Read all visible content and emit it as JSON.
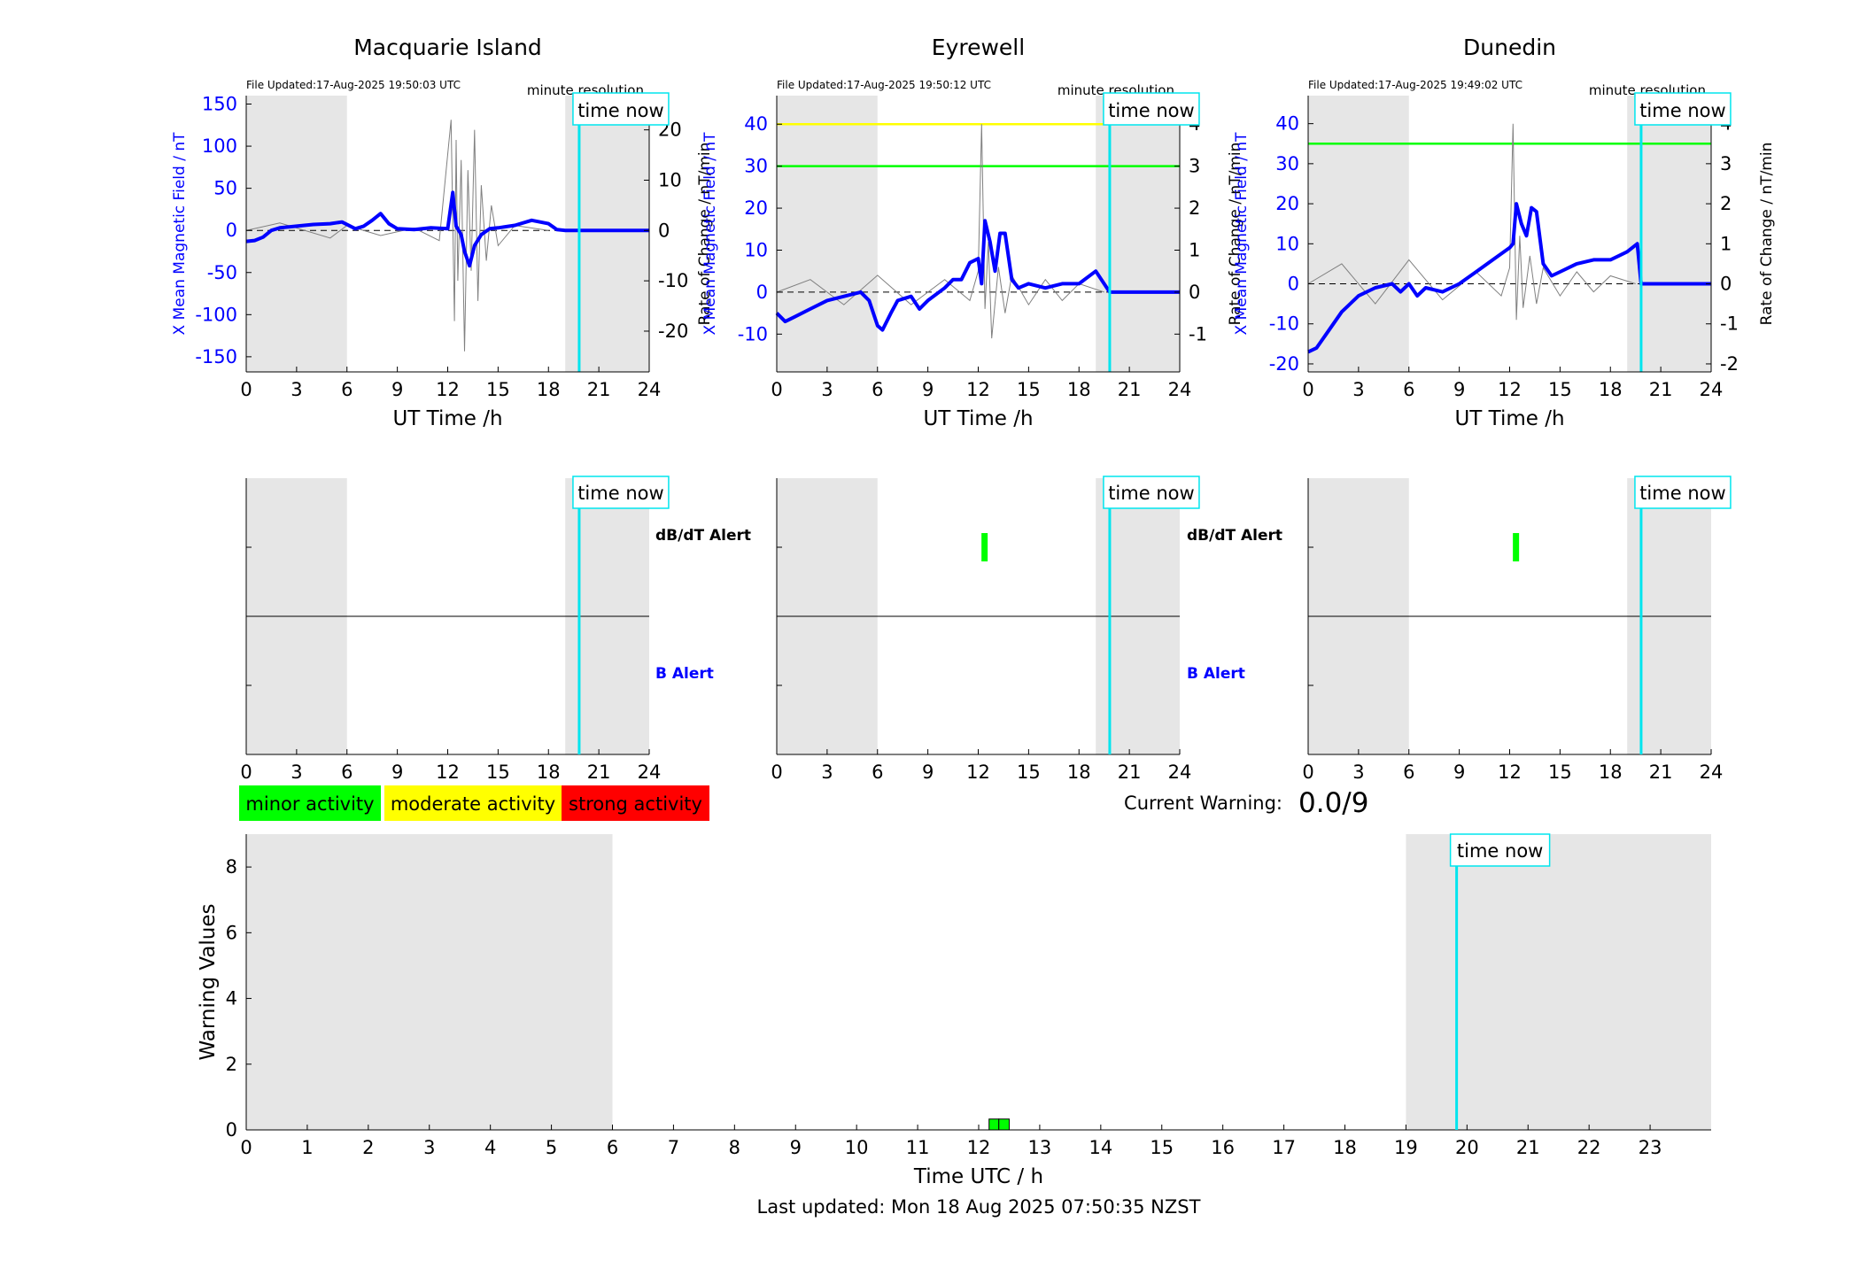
{
  "colors": {
    "background_axes": "#e6e6e6",
    "mean_field": "#0000ff",
    "rate_of_change": "#808080",
    "time_now": "#00e5ee",
    "minor": "#00ff00",
    "moderate": "#ffff00",
    "strong": "#ff0000"
  },
  "stations": [
    {
      "name": "Macquarie Island",
      "file_updated": "File Updated:17-Aug-2025 19:50:03 UTC",
      "resolution": "minute resolution",
      "time_now_label": "time now",
      "y_left_label": "X Mean Magnetic Field / nT",
      "y_right_label": "Rate of Change / nT/min",
      "x_label": "UT Time /h"
    },
    {
      "name": "Eyrewell",
      "file_updated": "File Updated:17-Aug-2025 19:50:12 UTC",
      "resolution": "minute resolution",
      "time_now_label": "time now",
      "y_left_label": "X Mean Magnetic Field / nT",
      "y_right_label": "Rate of Change / nT/min",
      "x_label": "UT Time /h"
    },
    {
      "name": "Dunedin",
      "file_updated": "File Updated:17-Aug-2025 19:49:02 UTC",
      "resolution": "minute resolution",
      "time_now_label": "time now",
      "y_left_label": "X Mean Magnetic Field / nT",
      "y_right_label": "Rate of Change / nT/min",
      "x_label": "UT Time /h"
    }
  ],
  "alerts": {
    "dbdt_label": "dB/dT Alert",
    "b_label": "B Alert",
    "time_now_label": "time now"
  },
  "legend": {
    "minor": "minor activity",
    "moderate": "moderate activity",
    "strong": "strong activity"
  },
  "current_warning": {
    "label": "Current Warning:",
    "value": "0.0/9"
  },
  "warning": {
    "y_label": "Warning Values",
    "x_label": "Time UTC / h",
    "time_now_label": "time now"
  },
  "footer": {
    "last_updated": "Last updated: Mon 18 Aug 2025 07:50:35 NZST"
  },
  "chart_data": [
    {
      "type": "line",
      "title": "Macquarie Island",
      "xlabel": "UT Time /h",
      "ylabel": "X Mean Magnetic Field / nT",
      "ylabel_right": "Rate of Change / nT/min",
      "xlim": [
        0,
        24
      ],
      "ylim": [
        -168,
        160
      ],
      "ylim_right": [
        -28.1,
        26.8
      ],
      "xticks": [
        0,
        3,
        6,
        9,
        12,
        15,
        18,
        21,
        24
      ],
      "yticks": [
        -150,
        -100,
        -50,
        0,
        50,
        100,
        150
      ],
      "yticks_right": [
        -20,
        -10,
        0,
        10,
        20
      ],
      "shaded_hours": [
        [
          0,
          6
        ],
        [
          19,
          24
        ]
      ],
      "time_now": 19.83,
      "thresholds": [],
      "series": [
        {
          "axis": "left",
          "x": [
            0,
            0.5,
            1,
            1.5,
            2,
            3,
            4,
            5,
            5.7,
            6.5,
            7,
            7.5,
            8,
            8.5,
            9,
            10,
            11,
            12,
            12.3,
            12.5,
            12.8,
            13,
            13.3,
            13.6,
            14,
            14.5,
            15,
            16,
            17,
            18,
            18.5,
            19,
            19.83,
            24
          ],
          "y": [
            -13,
            -12,
            -8,
            0,
            3,
            5,
            7,
            8,
            10,
            2,
            5,
            12,
            20,
            8,
            2,
            1,
            3,
            2,
            45,
            5,
            -5,
            -25,
            -42,
            -18,
            -5,
            2,
            3,
            6,
            12,
            8,
            1,
            0,
            0,
            0
          ]
        },
        {
          "axis": "right",
          "x": [
            0,
            2,
            5,
            6,
            8,
            10,
            11.5,
            12.2,
            12.4,
            12.5,
            12.6,
            12.8,
            13.0,
            13.2,
            13.4,
            13.6,
            13.8,
            14.0,
            14.3,
            14.6,
            15,
            16,
            18
          ],
          "y": [
            0,
            1.5,
            -1.5,
            1,
            -1,
            0.5,
            -2,
            22,
            -18,
            18,
            -10,
            14,
            -24,
            12,
            -8,
            20,
            -14,
            9,
            -6,
            5,
            -3,
            1,
            0
          ]
        }
      ]
    },
    {
      "type": "line",
      "title": "Eyrewell",
      "xlabel": "UT Time /h",
      "ylabel": "X Mean Magnetic Field / nT",
      "ylabel_right": "Rate of Change / nT/min",
      "xlim": [
        0,
        24
      ],
      "ylim": [
        -19,
        46.8
      ],
      "ylim_right": [
        -1.9,
        4.68
      ],
      "xticks": [
        0,
        3,
        6,
        9,
        12,
        15,
        18,
        21,
        24
      ],
      "yticks": [
        -10,
        0,
        10,
        20,
        30,
        40
      ],
      "yticks_right": [
        -1,
        0,
        1,
        2,
        3,
        4
      ],
      "shaded_hours": [
        [
          0,
          6
        ],
        [
          19,
          24
        ]
      ],
      "time_now": 19.83,
      "thresholds": [
        {
          "value": 40,
          "color": "#ffff00"
        },
        {
          "value": 30,
          "color": "#00ff00"
        }
      ],
      "series": [
        {
          "axis": "left",
          "x": [
            0,
            0.5,
            1,
            2,
            3,
            4,
            5,
            5.5,
            6,
            6.3,
            6.8,
            7.2,
            8,
            8.5,
            9,
            10,
            10.5,
            11,
            11.5,
            12,
            12.2,
            12.4,
            12.7,
            13,
            13.3,
            13.6,
            14,
            14.4,
            15,
            16,
            17,
            18,
            19,
            19.83,
            24
          ],
          "y": [
            -5,
            -7,
            -6,
            -4,
            -2,
            -1,
            0,
            -2,
            -8,
            -9,
            -5,
            -2,
            -1,
            -4,
            -2,
            1,
            3,
            3,
            7,
            8,
            2,
            17,
            12,
            5,
            14,
            14,
            3,
            1,
            2,
            1,
            2,
            2,
            5,
            0,
            0
          ]
        },
        {
          "axis": "right",
          "x": [
            0,
            2,
            4,
            6,
            8,
            10,
            11.5,
            12,
            12.2,
            12.4,
            12.6,
            12.8,
            13.2,
            13.6,
            14,
            15,
            16,
            17,
            18,
            19.5
          ],
          "y": [
            0,
            0.3,
            -0.3,
            0.4,
            -0.3,
            0.3,
            -0.2,
            0.5,
            4.0,
            -0.4,
            1.2,
            -1.1,
            0.6,
            -0.5,
            0.4,
            -0.3,
            0.3,
            -0.2,
            0.2,
            0
          ]
        }
      ]
    },
    {
      "type": "line",
      "title": "Dunedin",
      "xlabel": "UT Time /h",
      "ylabel": "X Mean Magnetic Field / nT",
      "ylabel_right": "Rate of Change / nT/min",
      "xlim": [
        0,
        24
      ],
      "ylim": [
        -22,
        47
      ],
      "ylim_right": [
        -2.2,
        4.7
      ],
      "xticks": [
        0,
        3,
        6,
        9,
        12,
        15,
        18,
        21,
        24
      ],
      "yticks": [
        -20,
        -10,
        0,
        10,
        20,
        30,
        40
      ],
      "yticks_right": [
        -2,
        -1,
        0,
        1,
        2,
        3,
        4
      ],
      "shaded_hours": [
        [
          0,
          6
        ],
        [
          19,
          24
        ]
      ],
      "time_now": 19.83,
      "thresholds": [
        {
          "value": 35,
          "color": "#00ff00"
        }
      ],
      "series": [
        {
          "axis": "left",
          "x": [
            0,
            0.5,
            1,
            2,
            3,
            4,
            5,
            5.5,
            6,
            6.5,
            7,
            8,
            9,
            10,
            11,
            12,
            12.2,
            12.4,
            12.7,
            13,
            13.3,
            13.6,
            14,
            14.5,
            15,
            16,
            17,
            18,
            18.5,
            19,
            19.6,
            19.83,
            24
          ],
          "y": [
            -17,
            -16,
            -13,
            -7,
            -3,
            -1,
            0,
            -2,
            0,
            -3,
            -1,
            -2,
            0,
            3,
            6,
            9,
            10,
            20,
            15,
            12,
            19,
            18,
            5,
            2,
            3,
            5,
            6,
            6,
            7,
            8,
            10,
            0,
            0
          ]
        },
        {
          "axis": "right",
          "x": [
            0,
            2,
            4,
            6,
            8,
            10,
            11.5,
            12,
            12.2,
            12.4,
            12.6,
            12.8,
            13.2,
            13.6,
            14,
            15,
            16,
            17,
            18,
            19.5
          ],
          "y": [
            0,
            0.5,
            -0.5,
            0.6,
            -0.4,
            0.3,
            -0.3,
            0.4,
            4.0,
            -0.9,
            1.2,
            -0.6,
            0.7,
            -0.5,
            0.4,
            -0.3,
            0.3,
            -0.2,
            0.2,
            0
          ]
        }
      ]
    },
    {
      "type": "bar",
      "title": "",
      "xlabel": "Time UTC / h",
      "ylabel": "Warning Values",
      "xlim": [
        0,
        24
      ],
      "ylim": [
        0,
        9
      ],
      "xticks": [
        0,
        1,
        2,
        3,
        4,
        5,
        6,
        7,
        8,
        9,
        10,
        11,
        12,
        13,
        14,
        15,
        16,
        17,
        18,
        19,
        20,
        21,
        22,
        23
      ],
      "yticks": [
        0,
        2,
        4,
        6,
        8
      ],
      "shaded_hours": [
        [
          0,
          6
        ],
        [
          19,
          24
        ]
      ],
      "time_now": 19.83,
      "bars": [
        {
          "start": 12.17,
          "end": 12.33,
          "value": 0.33,
          "level": "minor"
        },
        {
          "start": 12.33,
          "end": 12.5,
          "value": 0.33,
          "level": "minor"
        }
      ]
    }
  ]
}
